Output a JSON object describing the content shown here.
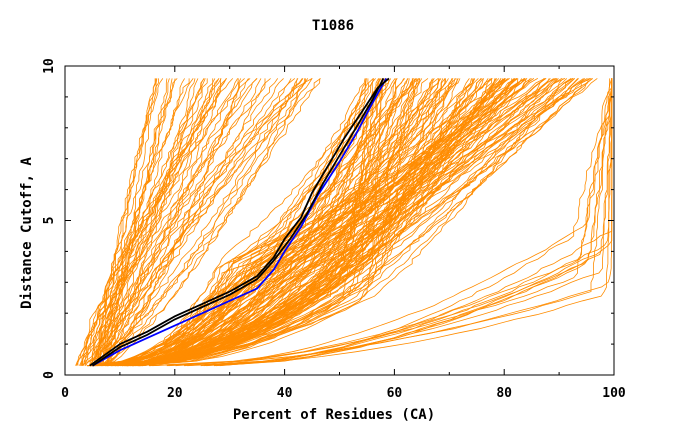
{
  "chart_data": {
    "type": "line",
    "title": "T1086",
    "xlabel": "Percent of Residues (CA)",
    "ylabel": "Distance Cutoff, A",
    "xlim": [
      0,
      100
    ],
    "ylim": [
      0,
      10
    ],
    "xticks": [
      "0",
      "20",
      "40",
      "60",
      "80",
      "100"
    ],
    "yticks": [
      "0",
      "5",
      "10"
    ],
    "grid": false,
    "colors": {
      "background_models": "#ff8c00",
      "highlight_black": "#000000",
      "highlight_blue": "#0000ff"
    },
    "series": [
      {
        "color": "#0000ff",
        "x": [
          5,
          10,
          15,
          20,
          25,
          30,
          35,
          38,
          40,
          43,
          46,
          50,
          53,
          56,
          58.5
        ],
        "y": [
          0.3,
          0.8,
          1.2,
          1.6,
          2.0,
          2.4,
          2.8,
          3.4,
          4.0,
          4.8,
          5.8,
          6.9,
          7.8,
          8.8,
          9.6
        ]
      },
      {
        "color": "#000000",
        "x": [
          4.5,
          10,
          15,
          20,
          25,
          30,
          35,
          38,
          40,
          43,
          45,
          48,
          51,
          54,
          57,
          59
        ],
        "y": [
          0.3,
          1.0,
          1.4,
          1.9,
          2.3,
          2.7,
          3.2,
          3.8,
          4.4,
          5.1,
          5.9,
          6.8,
          7.7,
          8.5,
          9.3,
          9.6
        ]
      },
      {
        "color": "#000000",
        "x": [
          5,
          10,
          15,
          20,
          25,
          30,
          35,
          38,
          41,
          44,
          47,
          50,
          53,
          56,
          58
        ],
        "y": [
          0.3,
          0.9,
          1.3,
          1.8,
          2.2,
          2.6,
          3.1,
          3.7,
          4.4,
          5.2,
          6.2,
          7.1,
          8.0,
          8.9,
          9.6
        ]
      }
    ]
  }
}
